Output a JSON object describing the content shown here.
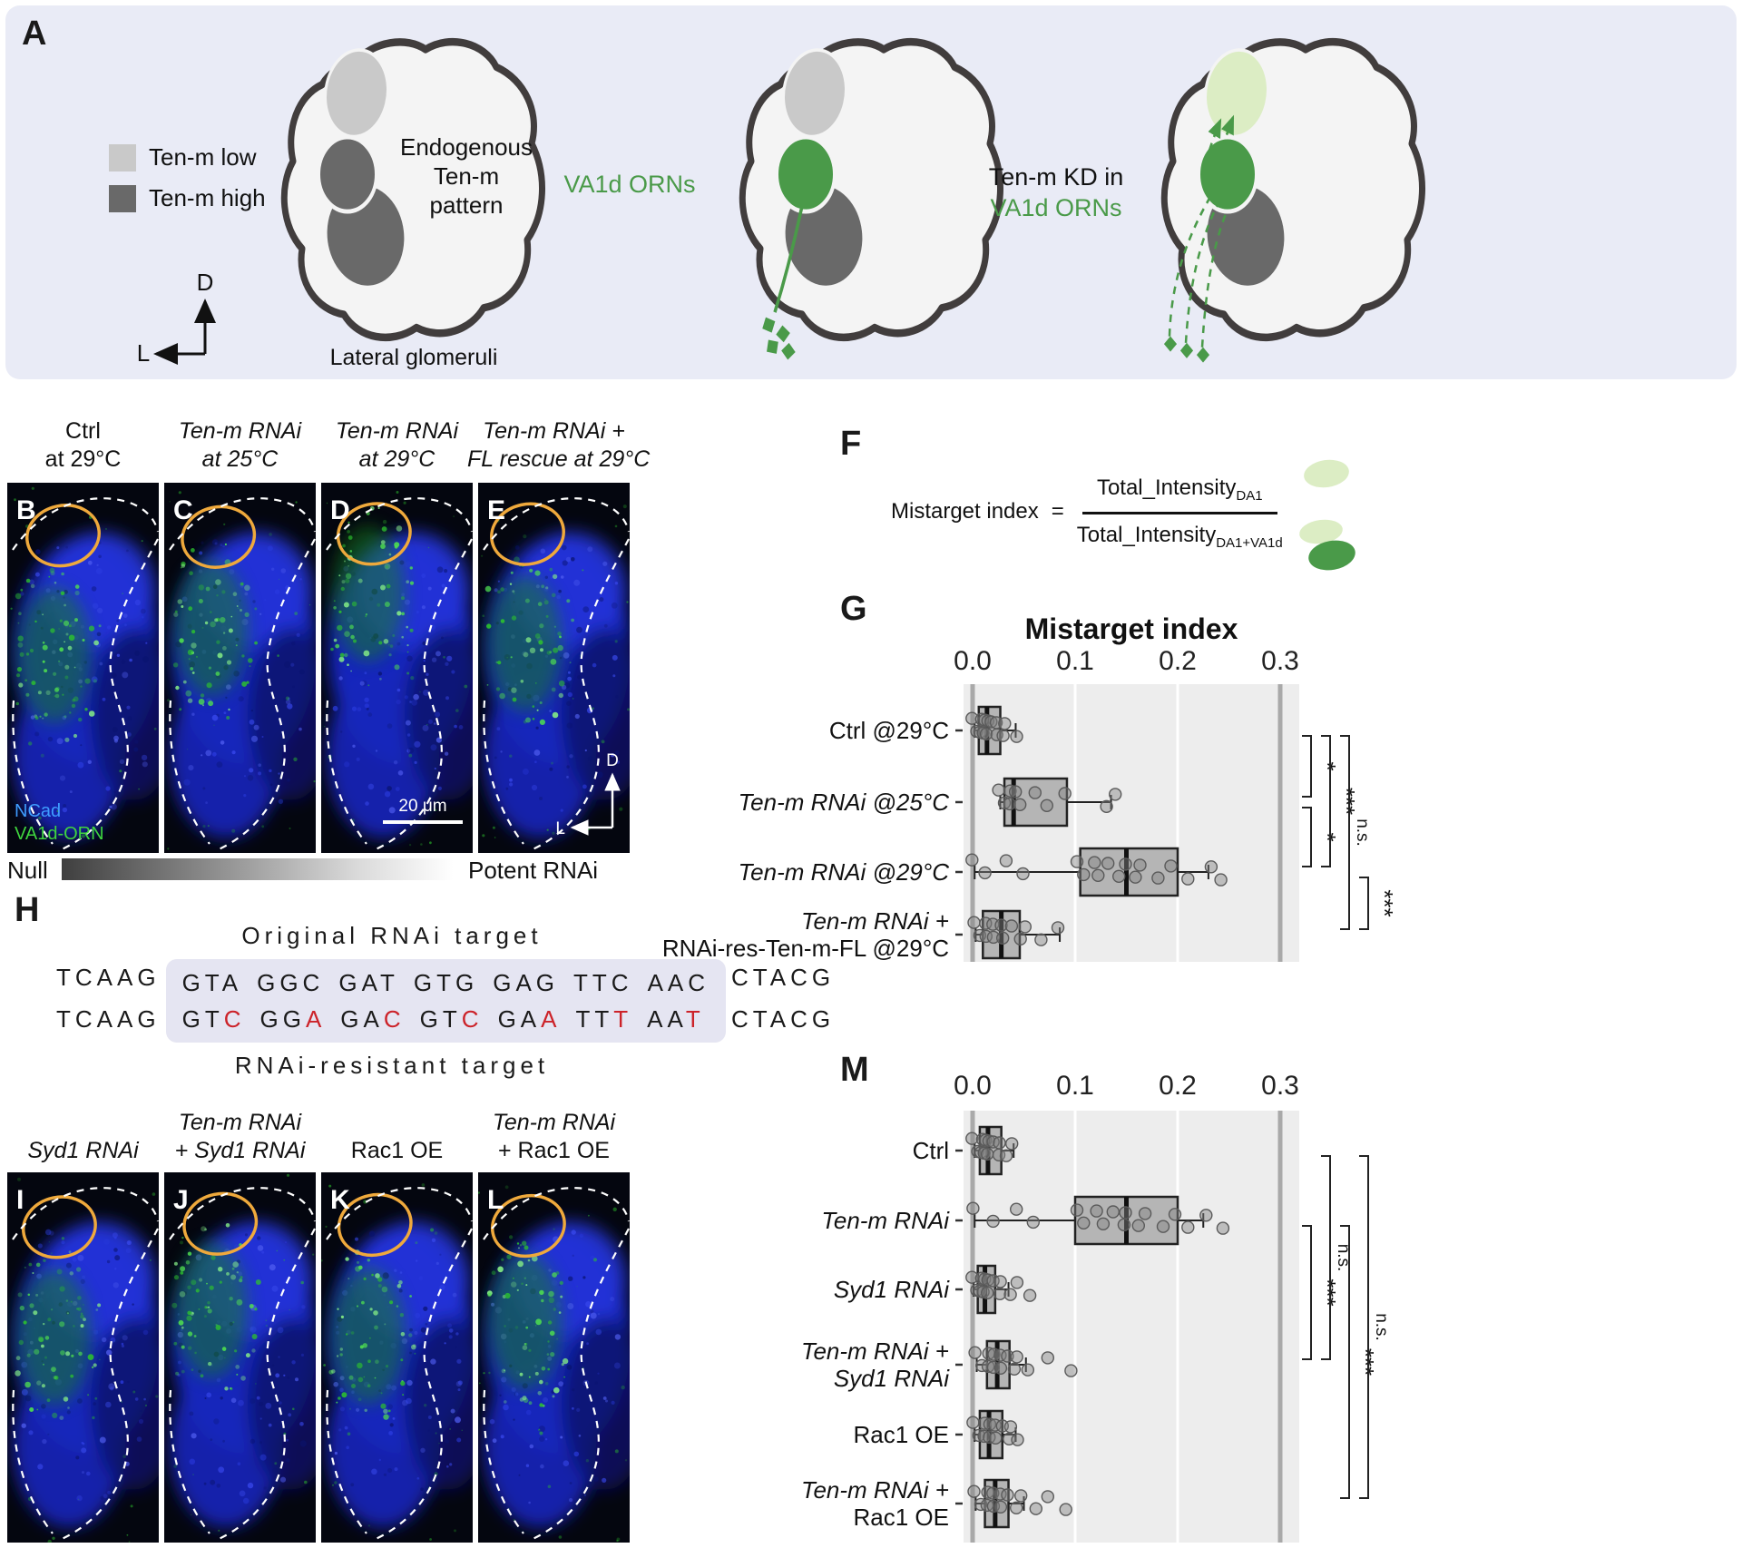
{
  "panelA": {
    "label": "A",
    "legend": [
      {
        "label": "Ten-m low",
        "color": "#c9c9c9"
      },
      {
        "label": "Ten-m high",
        "color": "#696969"
      }
    ],
    "axis_up": "D",
    "axis_left": "L",
    "diagram1_title": "Endogenous\nTen-m\npattern",
    "diagram1_caption": "Lateral glomeruli",
    "diagram2_title": "VA1d ORNs",
    "diagram3_title_black": "Ten-m KD in",
    "diagram3_title_green": "VA1d ORNs",
    "green": "#4a9a49",
    "light_green": "#dcedc4",
    "ten_m_low_color": "#c9c9c9",
    "ten_m_high_color": "#696969"
  },
  "micro_row1": [
    {
      "letter": "B",
      "title": [
        {
          "text": "Ctrl",
          "italic": false
        },
        {
          "text": "at 29°C",
          "italic": false
        }
      ],
      "channels": [
        {
          "label": "NCad",
          "color": "#3f9dff"
        },
        {
          "label": "VA1d-ORN",
          "color": "#3fd53f"
        }
      ]
    },
    {
      "letter": "C",
      "title": [
        {
          "text": "Ten-m RNAi",
          "italic": true
        },
        {
          "text": "at 25°C",
          "italic": true
        }
      ]
    },
    {
      "letter": "D",
      "title": [
        {
          "text": "Ten-m RNAi",
          "italic": true
        },
        {
          "text": "at 29°C",
          "italic": true
        }
      ],
      "scalebar": "20 μm"
    },
    {
      "letter": "E",
      "title": [
        {
          "text": "Ten-m RNAi +",
          "italic": true
        },
        {
          "text": "FL rescue at 29°C",
          "italic": true
        }
      ],
      "axes": {
        "up": "D",
        "left": "L"
      }
    }
  ],
  "micro_row2": [
    {
      "letter": "I",
      "title": [
        {
          "text": "Syd1 RNAi",
          "italic": true
        }
      ]
    },
    {
      "letter": "J",
      "title": [
        {
          "text": "Ten-m RNAi",
          "italic": true
        },
        {
          "text": "+ Syd1 RNAi",
          "italic": true
        }
      ]
    },
    {
      "letter": "K",
      "title": [
        {
          "text": "Rac1 OE",
          "italic": false
        }
      ]
    },
    {
      "letter": "L",
      "title": [
        {
          "text": "Ten-m RNAi",
          "italic": true
        },
        {
          "text": "+ Rac1 OE",
          "italic": false
        }
      ]
    }
  ],
  "gradient_bar": {
    "left_label": "Null",
    "right_label": "Potent RNAi"
  },
  "panelH": {
    "label": "H",
    "top_title": "Original RNAi target",
    "bottom_title": "RNAi-resistant target",
    "prefix": "TCAAG",
    "suffix": "CTACG",
    "original_codons": [
      "GTA",
      "GGC",
      "GAT",
      "GTG",
      "GAG",
      "TTC",
      "AAC"
    ],
    "resistant_codons": [
      "GTC",
      "GGA",
      "GAC",
      "GTC",
      "GAA",
      "TTT",
      "AAT"
    ],
    "mutation_color": "#cc2229"
  },
  "panelF": {
    "label": "F",
    "lhs": "Mistarget index",
    "eq": "=",
    "num": "Total_Intensity",
    "num_sub": "DA1",
    "den": "Total_Intensity",
    "den_sub": "DA1+VA1d"
  },
  "chart_data": [
    {
      "type": "box",
      "panel_label": "G",
      "title": "Mistarget index",
      "x_ticks": [
        "0.0",
        "0.1",
        "0.2",
        "0.3"
      ],
      "x_tick_values": [
        0,
        0.1,
        0.2,
        0.3
      ],
      "xlim": [
        0,
        0.3
      ],
      "legend_position": "none",
      "grid": true,
      "rows": [
        {
          "label_lines": [
            {
              "text": "Ctrl @29°C",
              "italic": false
            }
          ],
          "box": {
            "q1": 0.006,
            "median": 0.014,
            "q3": 0.027,
            "whisker_low": 0.002,
            "whisker_high": 0.042
          },
          "points": [
            0.002,
            0.004,
            0.006,
            0.008,
            0.01,
            0.012,
            0.014,
            0.016,
            0.018,
            0.021,
            0.024,
            0.028,
            0.033,
            0.042
          ]
        },
        {
          "label_lines": [
            {
              "text": "Ten-m RNAi @25°C",
              "italic": true
            }
          ],
          "box": {
            "q1": 0.031,
            "median": 0.04,
            "q3": 0.092,
            "whisker_low": 0.027,
            "whisker_high": 0.135
          },
          "points": [
            0.028,
            0.031,
            0.034,
            0.037,
            0.04,
            0.048,
            0.06,
            0.075,
            0.09,
            0.128,
            0.14
          ]
        },
        {
          "label_lines": [
            {
              "text": "Ten-m RNAi @29°C",
              "italic": true
            }
          ],
          "box": {
            "q1": 0.105,
            "median": 0.15,
            "q3": 0.2,
            "whisker_low": 0.002,
            "whisker_high": 0.23
          },
          "points": [
            0.002,
            0.012,
            0.03,
            0.05,
            0.1,
            0.11,
            0.118,
            0.125,
            0.132,
            0.14,
            0.15,
            0.157,
            0.165,
            0.18,
            0.196,
            0.21,
            0.23,
            0.243
          ]
        },
        {
          "label_lines": [
            {
              "text": "Ten-m RNAi +",
              "italic": true
            },
            {
              "text": "RNAi-res-Ten-m-FL @29°C",
              "italic": false
            }
          ],
          "box": {
            "q1": 0.01,
            "median": 0.028,
            "q3": 0.046,
            "whisker_low": 0.003,
            "whisker_high": 0.085
          },
          "points": [
            0.004,
            0.007,
            0.01,
            0.014,
            0.018,
            0.022,
            0.027,
            0.032,
            0.038,
            0.044,
            0.052,
            0.065,
            0.085
          ]
        }
      ],
      "brackets": [
        {
          "from": 0,
          "to": 1,
          "label": "*",
          "col": 0
        },
        {
          "from": 1,
          "to": 2,
          "label": "*",
          "col": 0
        },
        {
          "from": 0,
          "to": 2,
          "label": "***",
          "col": 1
        },
        {
          "from": 0,
          "to": 3,
          "label": "n.s.",
          "col": 2
        },
        {
          "from": 2,
          "to": 3,
          "label": "***",
          "col": 3
        }
      ]
    },
    {
      "type": "box",
      "panel_label": "M",
      "title": "",
      "x_ticks": [
        "0.0",
        "0.1",
        "0.2",
        "0.3"
      ],
      "x_tick_values": [
        0,
        0.1,
        0.2,
        0.3
      ],
      "xlim": [
        0,
        0.3
      ],
      "legend_position": "none",
      "grid": true,
      "rows": [
        {
          "label_lines": [
            {
              "text": "Ctrl",
              "italic": false
            }
          ],
          "box": {
            "q1": 0.007,
            "median": 0.015,
            "q3": 0.028,
            "whisker_low": 0.002,
            "whisker_high": 0.04
          },
          "points": [
            0.002,
            0.005,
            0.007,
            0.009,
            0.011,
            0.013,
            0.015,
            0.017,
            0.02,
            0.023,
            0.027,
            0.031,
            0.04
          ]
        },
        {
          "label_lines": [
            {
              "text": "Ten-m RNAi",
              "italic": true
            }
          ],
          "box": {
            "q1": 0.1,
            "median": 0.15,
            "q3": 0.2,
            "whisker_low": 0.002,
            "whisker_high": 0.225
          },
          "points": [
            0.003,
            0.02,
            0.04,
            0.06,
            0.1,
            0.11,
            0.12,
            0.13,
            0.137,
            0.145,
            0.15,
            0.16,
            0.17,
            0.185,
            0.2,
            0.21,
            0.225,
            0.245
          ]
        },
        {
          "label_lines": [
            {
              "text": "Syd1 RNAi",
              "italic": true
            }
          ],
          "box": {
            "q1": 0.005,
            "median": 0.012,
            "q3": 0.022,
            "whisker_low": 0.001,
            "whisker_high": 0.035
          },
          "points": [
            0.002,
            0.004,
            0.006,
            0.008,
            0.01,
            0.012,
            0.014,
            0.017,
            0.02,
            0.024,
            0.028,
            0.035,
            0.045,
            0.055
          ]
        },
        {
          "label_lines": [
            {
              "text": "Ten-m RNAi +",
              "italic": true
            },
            {
              "text": "Syd1 RNAi",
              "italic": true
            }
          ],
          "box": {
            "q1": 0.014,
            "median": 0.024,
            "q3": 0.036,
            "whisker_low": 0.004,
            "whisker_high": 0.052
          },
          "points": [
            0.005,
            0.009,
            0.013,
            0.016,
            0.019,
            0.022,
            0.026,
            0.03,
            0.034,
            0.038,
            0.044,
            0.052,
            0.075,
            0.095
          ]
        },
        {
          "label_lines": [
            {
              "text": "Rac1 OE",
              "italic": false
            }
          ],
          "box": {
            "q1": 0.007,
            "median": 0.016,
            "q3": 0.029,
            "whisker_low": 0.002,
            "whisker_high": 0.042
          },
          "points": [
            0.003,
            0.006,
            0.009,
            0.012,
            0.015,
            0.018,
            0.021,
            0.025,
            0.029,
            0.033,
            0.038,
            0.042
          ]
        },
        {
          "label_lines": [
            {
              "text": "Ten-m RNAi +",
              "italic": true
            },
            {
              "text": "Rac1 OE",
              "italic": false
            }
          ],
          "box": {
            "q1": 0.012,
            "median": 0.022,
            "q3": 0.035,
            "whisker_low": 0.003,
            "whisker_high": 0.05
          },
          "points": [
            0.004,
            0.008,
            0.012,
            0.015,
            0.018,
            0.022,
            0.026,
            0.03,
            0.034,
            0.04,
            0.048,
            0.06,
            0.075,
            0.09
          ]
        }
      ],
      "brackets": [
        {
          "from": 1,
          "to": 3,
          "label": "***",
          "col": 0
        },
        {
          "from": 0,
          "to": 3,
          "label": "n.s.",
          "col": 1
        },
        {
          "from": 1,
          "to": 5,
          "label": "***",
          "col": 2
        },
        {
          "from": 0,
          "to": 5,
          "label": "n.s.",
          "col": 3
        }
      ]
    }
  ]
}
